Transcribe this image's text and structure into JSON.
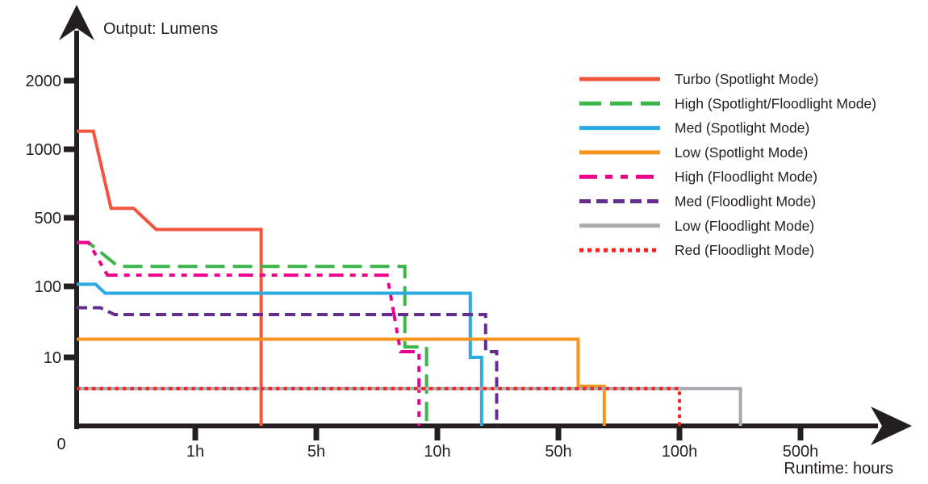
{
  "background": "#FFFFFF",
  "text_color": "#231F20",
  "chart_data": {
    "type": "line",
    "title": "",
    "x_axis": {
      "label": "Runtime: hours",
      "origin_label": "0",
      "tick_values": [
        1,
        5,
        10,
        50,
        100,
        500
      ],
      "tick_labels": [
        "1h",
        "5h",
        "10h",
        "50h",
        "100h",
        "500h"
      ],
      "scale": "pseudo-log: labeled ticks evenly spaced, log interpolation within segments"
    },
    "y_axis": {
      "label": "Output: Lumens",
      "tick_values": [
        10,
        100,
        500,
        1000,
        2000
      ],
      "tick_labels": [
        "10",
        "100",
        "500",
        "1000",
        "2000"
      ],
      "scale": "pseudo-log: labeled ticks evenly spaced, log interpolation within segments"
    },
    "grid": false,
    "legend_position": "top-right",
    "series": [
      {
        "name": "Turbo (Spotlight Mode)",
        "color": "#F2543D",
        "line_style": "solid",
        "dash": "",
        "legend_dash": "",
        "points": [
          [
            0,
            1200
          ],
          [
            0.14,
            1200
          ],
          [
            0.29,
            550
          ],
          [
            0.48,
            550
          ],
          [
            0.67,
            380
          ],
          [
            2.4,
            380
          ]
        ],
        "drops_to_zero_at": 2.4
      },
      {
        "name": "High (Spotlight/Floodlight Mode)",
        "color": "#3CB54A",
        "line_style": "long-dash",
        "dash": "24 10",
        "legend_dash": "27 11",
        "points": [
          [
            0,
            280
          ],
          [
            0.1,
            280
          ],
          [
            0.35,
            160
          ],
          [
            8.3,
            160
          ],
          [
            8.3,
            14
          ],
          [
            9.4,
            14
          ]
        ],
        "drops_to_zero_at": 9.4
      },
      {
        "name": "Med (Spotlight Mode)",
        "color": "#29ABE2",
        "line_style": "solid",
        "dash": "",
        "legend_dash": "",
        "points": [
          [
            0,
            105
          ],
          [
            0.16,
            105
          ],
          [
            0.24,
            80
          ],
          [
            15.5,
            80
          ],
          [
            15.5,
            10
          ],
          [
            18,
            10
          ]
        ],
        "drops_to_zero_at": 18
      },
      {
        "name": "Low (Spotlight Mode)",
        "color": "#F7941E",
        "line_style": "solid",
        "dash": "",
        "legend_dash": "",
        "points": [
          [
            0,
            18
          ],
          [
            56,
            18
          ],
          [
            56,
            3.8
          ],
          [
            65,
            3.8
          ]
        ],
        "drops_to_zero_at": 65
      },
      {
        "name": "High (Floodlight Mode)",
        "color": "#EC008C",
        "line_style": "dash-dot-dot",
        "dash": "18 8 7 8 7 8",
        "legend_dash": "22 10 9 10 9 10",
        "points": [
          [
            0,
            280
          ],
          [
            0.1,
            280
          ],
          [
            0.26,
            130
          ],
          [
            7.5,
            130
          ],
          [
            8.1,
            12
          ],
          [
            9.0,
            12
          ]
        ],
        "drops_to_zero_at": 9.0
      },
      {
        "name": "Med (Floodlight Mode)",
        "color": "#662D91",
        "line_style": "dash",
        "dash": "13 7",
        "legend_dash": "14 7",
        "points": [
          [
            0,
            50
          ],
          [
            0.2,
            50
          ],
          [
            0.32,
            40
          ],
          [
            19,
            40
          ],
          [
            19,
            12
          ],
          [
            22,
            12
          ]
        ],
        "drops_to_zero_at": 22
      },
      {
        "name": "Low (Floodlight Mode)",
        "color": "#A7A9AC",
        "line_style": "solid",
        "dash": "",
        "legend_dash": "",
        "points": [
          [
            0,
            3.5
          ],
          [
            225,
            3.5
          ]
        ],
        "drops_to_zero_at": 225
      },
      {
        "name": "Red (Floodlight Mode)",
        "color": "#ED2224",
        "line_style": "dotted",
        "dash": "4.5 5",
        "legend_dash": "5 5",
        "points": [
          [
            0,
            3.5
          ],
          [
            100,
            3.5
          ]
        ],
        "drops_to_zero_at": 100
      }
    ]
  }
}
